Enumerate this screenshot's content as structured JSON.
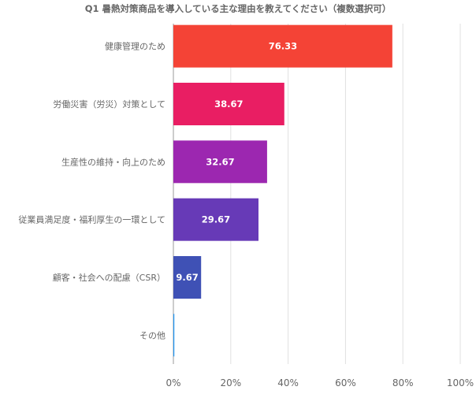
{
  "chart_data": {
    "type": "bar",
    "orientation": "horizontal",
    "title": "Q1 暑熱対策商品を導入している主な理由を教えてください（複数選択可）",
    "categories": [
      "健康管理のため",
      "労働災害（労災）対策として",
      "生産性の維持・向上のため",
      "従業員満足度・福利厚生の一環として",
      "顧客・社会への配慮（CSR）",
      "その他"
    ],
    "values": [
      76.33,
      38.67,
      32.67,
      29.67,
      9.67,
      0.33
    ],
    "value_labels": [
      "76.33",
      "38.67",
      "32.67",
      "29.67",
      "9.67",
      ""
    ],
    "colors": [
      "#f44336",
      "#e91e63",
      "#9c27b0",
      "#673ab7",
      "#3f51b5",
      "#2196f3"
    ],
    "xlim": [
      0,
      100
    ],
    "xticks": [
      "0%",
      "20%",
      "40%",
      "60%",
      "80%",
      "100%"
    ],
    "xtick_values": [
      0,
      20,
      40,
      60,
      80,
      100
    ],
    "xlabel": "",
    "ylabel": "",
    "grid": true,
    "legend": "none"
  }
}
